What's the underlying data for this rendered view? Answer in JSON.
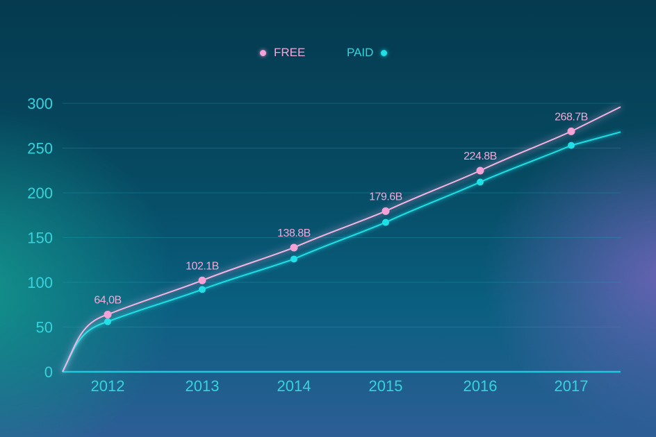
{
  "legend": {
    "free_label": "FREE",
    "paid_label": "PAID"
  },
  "colors": {
    "free": "#f5a3d6",
    "paid": "#1fe0e6",
    "axis_text": "#35d3dc",
    "gridline": "#1aa4b4"
  },
  "chart_data": {
    "type": "line",
    "title": "",
    "xlabel": "",
    "ylabel": "",
    "categories": [
      "2012",
      "2013",
      "2014",
      "2015",
      "2016",
      "2017"
    ],
    "y_ticks": [
      "0",
      "50",
      "100",
      "150",
      "200",
      "250",
      "300"
    ],
    "ylim": [
      0,
      300
    ],
    "grid": true,
    "legend_position": "top-center",
    "series": [
      {
        "name": "FREE",
        "values": [
          64.0,
          102.1,
          138.8,
          179.6,
          224.8,
          268.7
        ],
        "data_labels": [
          "64,0B",
          "102.1B",
          "138.8B",
          "179.6B",
          "224.8B",
          "268.7B"
        ]
      },
      {
        "name": "PAID",
        "values": [
          56,
          92,
          126,
          167,
          212,
          253
        ]
      }
    ]
  }
}
